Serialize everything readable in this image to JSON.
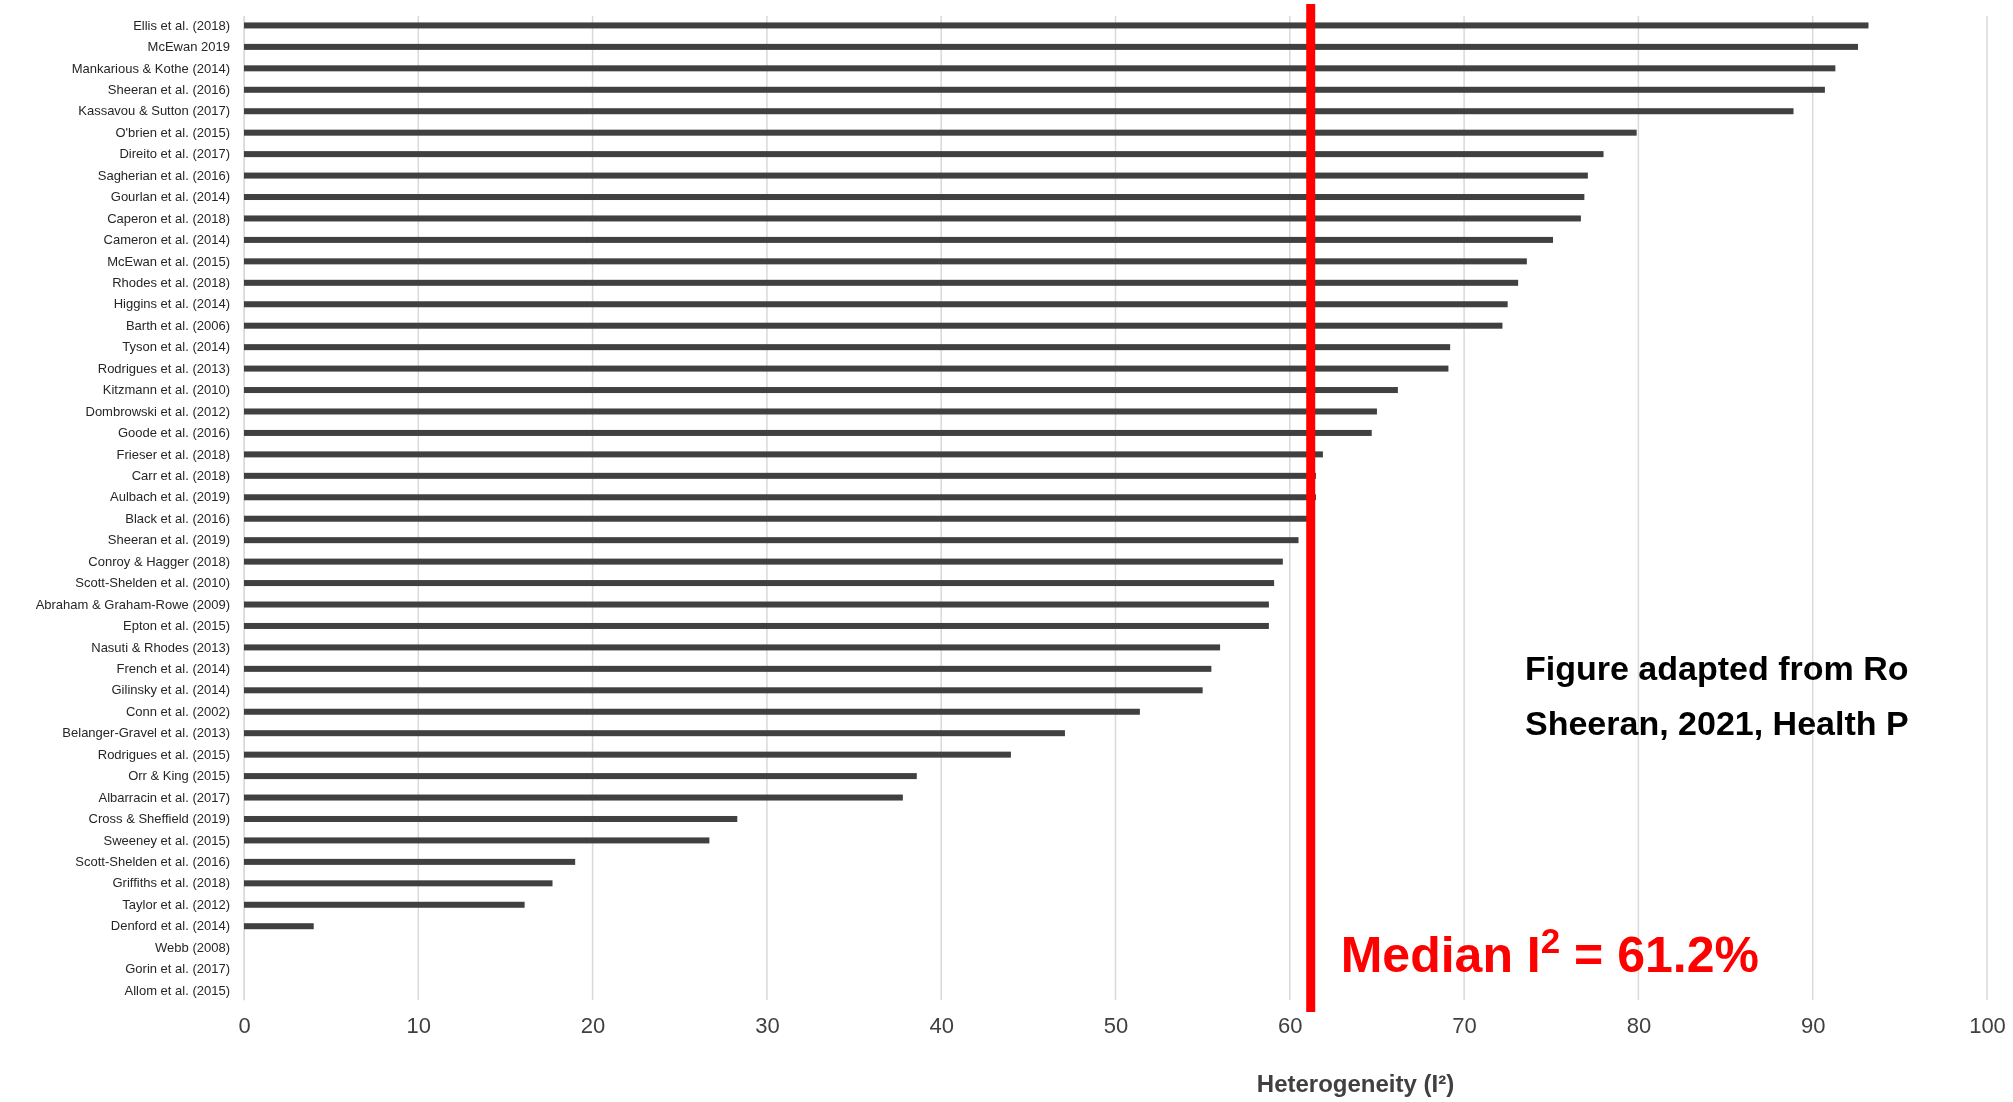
{
  "chart_data": {
    "type": "bar",
    "orientation": "horizontal",
    "xlabel": "Heterogeneity (I²)",
    "categories": [
      "Ellis et al. (2018)",
      "McEwan 2019",
      "Mankarious & Kothe (2014)",
      "Sheeran et al. (2016)",
      "Kassavou & Sutton (2017)",
      "O'brien et al. (2015)",
      "Direito et al. (2017)",
      "Sagherian et al. (2016)",
      "Gourlan et al. (2014)",
      "Caperon et al. (2018)",
      "Cameron et al. (2014)",
      "McEwan et al. (2015)",
      "Rhodes et al. (2018)",
      "Higgins et al. (2014)",
      "Barth et al. (2006)",
      "Tyson et al. (2014)",
      "Rodrigues et al. (2013)",
      "Kitzmann et al. (2010)",
      "Dombrowski et al. (2012)",
      "Goode et al. (2016)",
      "Frieser et al. (2018)",
      "Carr et al. (2018)",
      "Aulbach et al. (2019)",
      "Black et al. (2016)",
      "Sheeran et al. (2019)",
      "Conroy & Hagger (2018)",
      "Scott-Shelden et al. (2010)",
      "Abraham & Graham-Rowe (2009)",
      "Epton et al. (2015)",
      "Nasuti & Rhodes (2013)",
      "French et al. (2014)",
      "Gilinsky et al. (2014)",
      "Conn et al. (2002)",
      "Belanger-Gravel et al. (2013)",
      "Rodrigues et al. (2015)",
      "Orr & King (2015)",
      "Albarracin et al. (2017)",
      "Cross & Sheffield (2019)",
      "Sweeney et al. (2015)",
      "Scott-Shelden et al. (2016)",
      "Griffiths et al. (2018)",
      "Taylor et al. (2012)",
      "Denford et al. (2014)",
      "Webb (2008)",
      "Gorin et al. (2017)",
      "Allom et al. (2015)"
    ],
    "values": [
      93.2,
      92.6,
      91.3,
      90.7,
      88.9,
      79.9,
      78.0,
      77.1,
      76.9,
      76.7,
      75.1,
      73.6,
      73.1,
      72.5,
      72.2,
      69.2,
      69.1,
      66.2,
      65.0,
      64.7,
      61.9,
      61.5,
      61.5,
      61.0,
      60.5,
      59.6,
      59.1,
      58.8,
      58.8,
      56.0,
      55.5,
      55.0,
      51.4,
      47.1,
      44.0,
      38.6,
      37.8,
      28.3,
      26.7,
      19.0,
      17.7,
      16.1,
      4.0,
      0,
      0,
      0
    ],
    "color": "#404040",
    "xlim": [
      0,
      100
    ],
    "xticks": [
      0,
      10,
      20,
      30,
      40,
      50,
      60,
      70,
      80,
      90,
      100
    ],
    "grid": "x",
    "ref_lines": [
      {
        "axis": "x",
        "value": 61.2,
        "label": "Median I$^{2}$ = 61.2%",
        "color": "#ff0000"
      }
    ],
    "annotations": [
      "Figure adapted from Ro",
      "Sheeran, 2021, Health P"
    ]
  }
}
